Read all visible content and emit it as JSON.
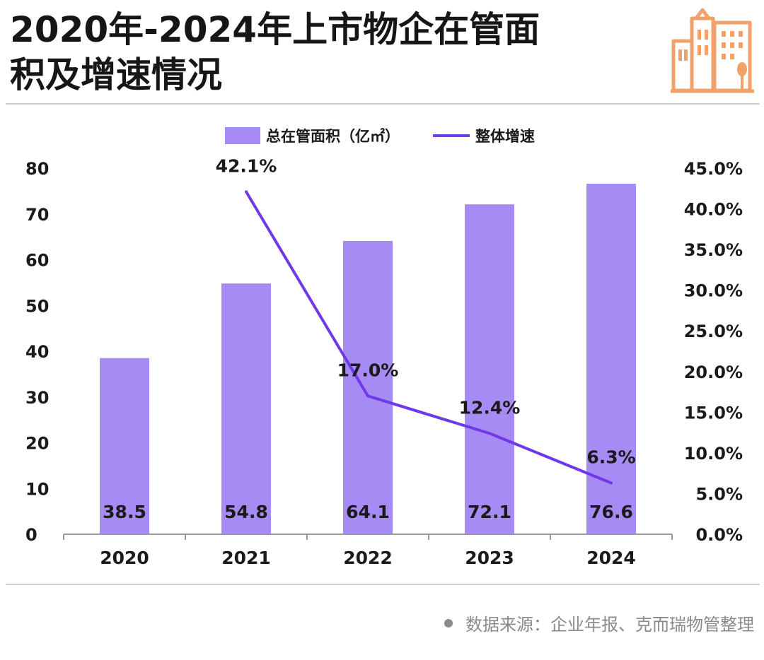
{
  "title_lines": [
    "2020年-2024年上市物企在管面",
    "积及增速情况"
  ],
  "source": "数据来源：企业年报、克而瑞物管整理",
  "logo": {
    "icon": "building-icon",
    "color": "#F0A26A"
  },
  "colors": {
    "bar": "#A78BF5",
    "line": "#6F38E8"
  },
  "chart_data": {
    "type": "bar",
    "categories": [
      "2020",
      "2021",
      "2022",
      "2023",
      "2024"
    ],
    "series": [
      {
        "name": "总在管面积（亿㎡）",
        "type": "bar",
        "axis": "left",
        "values": [
          38.5,
          54.8,
          64.1,
          72.1,
          76.6
        ],
        "labels": [
          "38.5",
          "54.8",
          "64.1",
          "72.1",
          "76.6"
        ]
      },
      {
        "name": "整体增速",
        "type": "line",
        "axis": "right",
        "values": [
          null,
          42.1,
          17.0,
          12.4,
          6.3
        ],
        "labels": [
          "",
          "42.1%",
          "17.0%",
          "12.4%",
          "6.3%"
        ]
      }
    ],
    "y_left": {
      "range": [
        0,
        80
      ],
      "ticks": [
        "0",
        "10",
        "20",
        "30",
        "40",
        "50",
        "60",
        "70",
        "80"
      ]
    },
    "y_right": {
      "range": [
        0,
        45
      ],
      "ticks": [
        "0.0%",
        "5.0%",
        "10.0%",
        "15.0%",
        "20.0%",
        "25.0%",
        "30.0%",
        "35.0%",
        "40.0%",
        "45.0%"
      ]
    },
    "legend": "top-center",
    "grid": false
  }
}
